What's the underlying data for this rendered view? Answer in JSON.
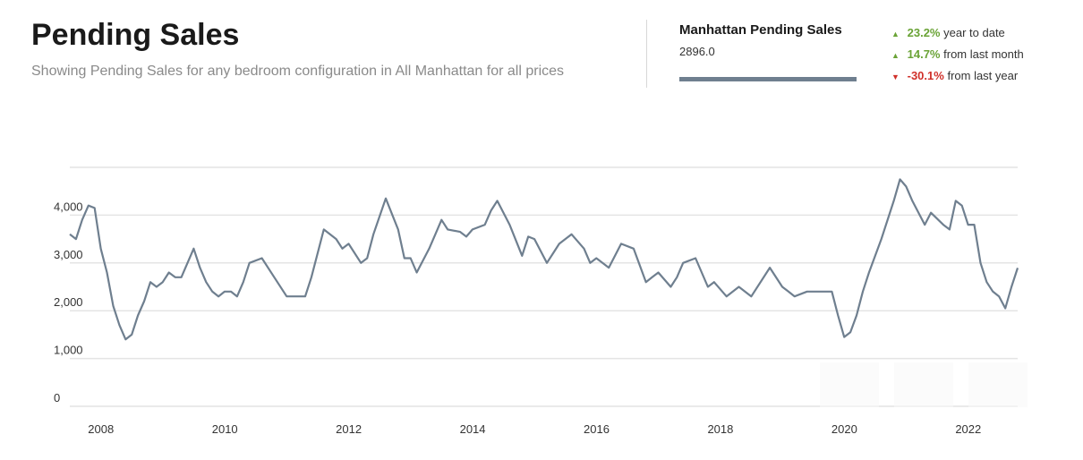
{
  "header": {
    "title": "Pending Sales",
    "subtitle": "Showing Pending Sales for any bedroom configuration in All Manhattan for all prices"
  },
  "legend": {
    "series_name": "Manhattan Pending Sales",
    "current_value": "2896.0",
    "color": "#6f7f8f"
  },
  "stats": [
    {
      "direction": "up",
      "value": "23.2%",
      "label": "year to date"
    },
    {
      "direction": "up",
      "value": "14.7%",
      "label": "from last month"
    },
    {
      "direction": "down",
      "value": "-30.1%",
      "label": "from last year"
    }
  ],
  "colors": {
    "up": "#6aa336",
    "down": "#d0302a",
    "line": "#6f7f8f",
    "grid": "#e4e4e4"
  },
  "toolbar_icons": [
    "download-icon",
    "share-icon",
    "embed-icon"
  ],
  "chart_data": {
    "type": "line",
    "title": "Pending Sales",
    "xlabel": "",
    "ylabel": "",
    "ylim": [
      0,
      5000
    ],
    "xlim": [
      2007.7,
      2023.0
    ],
    "yticks": [
      0,
      1000,
      2000,
      3000,
      4000
    ],
    "ytick_labels": [
      "0",
      "1,000",
      "2,000",
      "3,000",
      "4,000"
    ],
    "xticks": [
      2008,
      2010,
      2012,
      2014,
      2016,
      2018,
      2020,
      2022
    ],
    "xtick_labels": [
      "2008",
      "2010",
      "2012",
      "2014",
      "2016",
      "2018",
      "2020",
      "2022"
    ],
    "grid": true,
    "series": [
      {
        "name": "Manhattan Pending Sales",
        "x": [
          2007.7,
          2007.8,
          2007.9,
          2008.0,
          2008.1,
          2008.2,
          2008.3,
          2008.4,
          2008.5,
          2008.6,
          2008.7,
          2008.8,
          2008.9,
          2009.0,
          2009.1,
          2009.2,
          2009.3,
          2009.4,
          2009.5,
          2009.6,
          2009.7,
          2009.8,
          2009.9,
          2010.0,
          2010.1,
          2010.2,
          2010.3,
          2010.4,
          2010.5,
          2010.6,
          2010.8,
          2011.0,
          2011.2,
          2011.4,
          2011.5,
          2011.6,
          2011.8,
          2012.0,
          2012.1,
          2012.2,
          2012.4,
          2012.5,
          2012.6,
          2012.8,
          2013.0,
          2013.1,
          2013.2,
          2013.3,
          2013.5,
          2013.6,
          2013.7,
          2013.8,
          2014.0,
          2014.1,
          2014.2,
          2014.4,
          2014.5,
          2014.6,
          2014.8,
          2015.0,
          2015.1,
          2015.2,
          2015.4,
          2015.5,
          2015.6,
          2015.8,
          2016.0,
          2016.1,
          2016.2,
          2016.4,
          2016.6,
          2016.8,
          2017.0,
          2017.1,
          2017.2,
          2017.4,
          2017.5,
          2017.6,
          2017.8,
          2018.0,
          2018.1,
          2018.3,
          2018.5,
          2018.7,
          2019.0,
          2019.2,
          2019.3,
          2019.4,
          2019.6,
          2019.8,
          2020.0,
          2020.1,
          2020.2,
          2020.3,
          2020.4,
          2020.5,
          2020.6,
          2020.8,
          2021.0,
          2021.1,
          2021.2,
          2021.3,
          2021.5,
          2021.6,
          2021.8,
          2021.9,
          2022.0,
          2022.1,
          2022.2,
          2022.3,
          2022.4,
          2022.5,
          2022.6,
          2022.7,
          2022.8,
          2022.9,
          2023.0
        ],
        "values": [
          3600,
          3500,
          3900,
          4200,
          4150,
          3300,
          2800,
          2100,
          1700,
          1400,
          1500,
          1900,
          2200,
          2600,
          2500,
          2600,
          2800,
          2700,
          2700,
          3000,
          3300,
          2900,
          2600,
          2400,
          2300,
          2400,
          2400,
          2300,
          2600,
          3000,
          3100,
          2700,
          2300,
          2300,
          2300,
          2700,
          3700,
          3500,
          3300,
          3400,
          3000,
          3100,
          3600,
          4350,
          3700,
          3100,
          3100,
          2800,
          3300,
          3600,
          3900,
          3700,
          3650,
          3550,
          3700,
          3800,
          4100,
          4300,
          3800,
          3150,
          3550,
          3500,
          3000,
          3200,
          3400,
          3600,
          3300,
          3000,
          3100,
          2900,
          3400,
          3300,
          2600,
          2700,
          2800,
          2500,
          2700,
          3000,
          3100,
          2500,
          2600,
          2300,
          2500,
          2300,
          2900,
          2500,
          2400,
          2300,
          2400,
          2400,
          2400,
          1900,
          1450,
          1550,
          1900,
          2400,
          2800,
          3500,
          4300,
          4750,
          4600,
          4300,
          3800,
          4050,
          3800,
          3700,
          4300,
          4200,
          3800,
          3800,
          3000,
          2600,
          2400,
          2300,
          2050,
          2500,
          2896
        ]
      }
    ]
  }
}
